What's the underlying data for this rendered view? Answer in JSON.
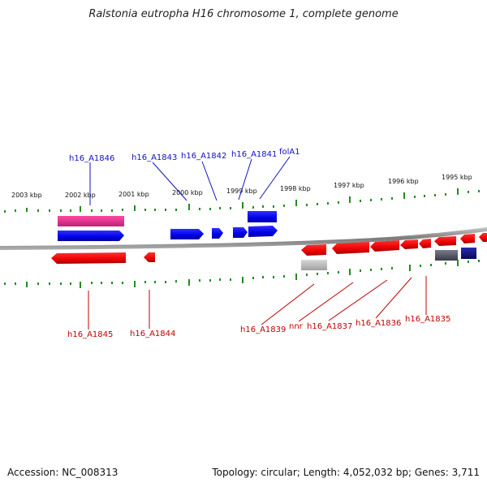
{
  "title": "Ralstonia eutropha H16 chromosome 1, complete genome",
  "footer": {
    "accession": "Accession: NC_008313",
    "summary": "Topology: circular; Length: 4,052,032 bp; Genes: 3,711"
  },
  "ruler_labels": [
    "2003 kbp",
    "2002 kbp",
    "2001 kbp",
    "2000 kbp",
    "1999 kbp",
    "1998 kbp",
    "1997 kbp",
    "1996 kbp",
    "1995 kbp"
  ],
  "top_gene_labels": [
    "h16_A1846",
    "h16_A1843",
    "h16_A1842",
    "h16_A1841",
    "folA1"
  ],
  "bottom_gene_labels": [
    "h16_A1845",
    "h16_A1844",
    "h16_A1839",
    "nnr",
    "h16_A1837",
    "h16_A1836",
    "h16_A1835"
  ],
  "colors": {
    "forward_gene": "#0000ee",
    "reverse_gene": "#ee0000",
    "rna_gene": "#ee2a8a",
    "pseudo_gene": "#b0b0b0",
    "dark_gene": "#555566",
    "navy_gene": "#10108a",
    "backbone": "#808080",
    "ticks": "#228b22",
    "top_label": "#1010c0",
    "bottom_label": "#c00000"
  }
}
